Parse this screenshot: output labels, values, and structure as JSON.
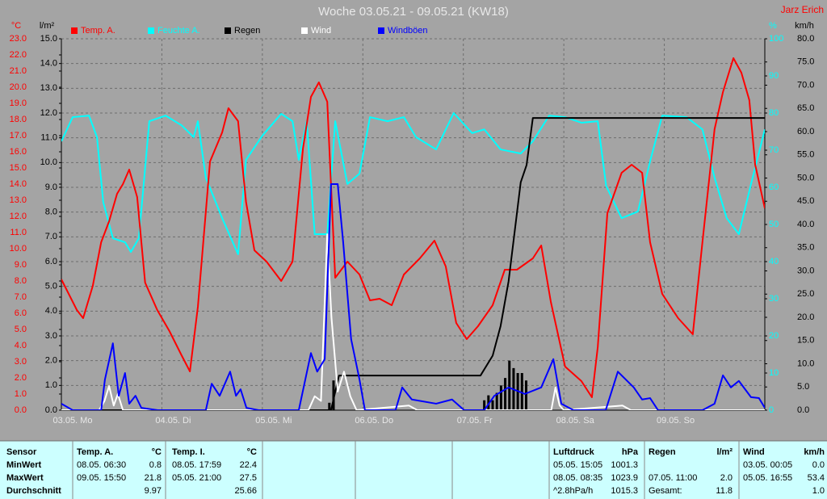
{
  "chart_data": {
    "type": "line",
    "title": "Woche 03.05.21 - 09.05.21 (KW18)",
    "author": "Jarz Erich",
    "xlim": [
      0,
      168
    ],
    "xticks": [
      {
        "value": 0,
        "label": "03.05. Mo"
      },
      {
        "value": 24,
        "label": "04.05. Di"
      },
      {
        "value": 48,
        "label": "05.05. Mi"
      },
      {
        "value": 72,
        "label": "06.05. Do"
      },
      {
        "value": 96,
        "label": "07.05. Fr"
      },
      {
        "value": 120,
        "label": "08.05. Sa"
      },
      {
        "value": 144,
        "label": "09.05. So"
      }
    ],
    "grid": true,
    "axes": [
      {
        "unit": "°C",
        "color": "#ff0000",
        "side": "left",
        "lim": [
          0,
          23
        ],
        "ticks": [
          {
            "value": 0,
            "label": "0.0"
          },
          {
            "value": 1,
            "label": "1.0"
          },
          {
            "value": 2,
            "label": "2.0"
          },
          {
            "value": 3,
            "label": "3.0"
          },
          {
            "value": 4,
            "label": "4.0"
          },
          {
            "value": 5,
            "label": "5.0"
          },
          {
            "value": 6,
            "label": "6.0"
          },
          {
            "value": 7,
            "label": "7.0"
          },
          {
            "value": 8,
            "label": "8.0"
          },
          {
            "value": 9,
            "label": "9.0"
          },
          {
            "value": 10,
            "label": "10.0"
          },
          {
            "value": 11,
            "label": "11.0"
          },
          {
            "value": 12,
            "label": "12.0"
          },
          {
            "value": 13,
            "label": "13.0"
          },
          {
            "value": 14,
            "label": "14.0"
          },
          {
            "value": 15,
            "label": "15.0"
          },
          {
            "value": 16,
            "label": "16.0"
          },
          {
            "value": 17,
            "label": "17.0"
          },
          {
            "value": 18,
            "label": "18.0"
          },
          {
            "value": 19,
            "label": "19.0"
          },
          {
            "value": 20,
            "label": "20.0"
          },
          {
            "value": 21,
            "label": "21.0"
          },
          {
            "value": 22,
            "label": "22.0"
          },
          {
            "value": 23,
            "label": "23.0"
          }
        ]
      },
      {
        "unit": "l/m²",
        "color": "#000000",
        "side": "left",
        "lim": [
          0,
          15
        ],
        "ticks": [
          {
            "value": 0,
            "label": "0.0"
          },
          {
            "value": 1,
            "label": "1.0"
          },
          {
            "value": 2,
            "label": "2.0"
          },
          {
            "value": 3,
            "label": "3.0"
          },
          {
            "value": 4,
            "label": "4.0"
          },
          {
            "value": 5,
            "label": "5.0"
          },
          {
            "value": 6,
            "label": "6.0"
          },
          {
            "value": 7,
            "label": "7.0"
          },
          {
            "value": 8,
            "label": "8.0"
          },
          {
            "value": 9,
            "label": "9.0"
          },
          {
            "value": 10,
            "label": "10.0"
          },
          {
            "value": 11,
            "label": "11.0"
          },
          {
            "value": 12,
            "label": "12.0"
          },
          {
            "value": 13,
            "label": "13.0"
          },
          {
            "value": 14,
            "label": "14.0"
          },
          {
            "value": 15,
            "label": "15.0"
          }
        ]
      },
      {
        "unit": "%",
        "color": "#00ffff",
        "side": "right",
        "lim": [
          0,
          100
        ],
        "ticks": [
          0,
          10,
          20,
          30,
          40,
          50,
          60,
          70,
          80,
          90,
          100
        ]
      },
      {
        "unit": "km/h",
        "color": "#000000",
        "side": "right",
        "lim": [
          0,
          80
        ],
        "ticks": [
          {
            "value": 0,
            "label": "0.0"
          },
          {
            "value": 5,
            "label": "5.0"
          },
          {
            "value": 10,
            "label": "10.0"
          },
          {
            "value": 15,
            "label": "15.0"
          },
          {
            "value": 20,
            "label": "20.0"
          },
          {
            "value": 25,
            "label": "25.0"
          },
          {
            "value": 30,
            "label": "30.0"
          },
          {
            "value": 35,
            "label": "35.0"
          },
          {
            "value": 40,
            "label": "40.0"
          },
          {
            "value": 45,
            "label": "45.0"
          },
          {
            "value": 50,
            "label": "50.0"
          },
          {
            "value": 55,
            "label": "55.0"
          },
          {
            "value": 60,
            "label": "60.0"
          },
          {
            "value": 65,
            "label": "65.0"
          },
          {
            "value": 70,
            "label": "70.0"
          },
          {
            "value": 75,
            "label": "75.0"
          },
          {
            "value": 80,
            "label": "80.0"
          }
        ]
      }
    ],
    "series": [
      {
        "name": "Temp. A.",
        "color": "#ff0000",
        "axis": 0,
        "x": [
          0,
          3.7,
          5.2,
          7.5,
          9.5,
          11.4,
          13.3,
          14.7,
          16.2,
          18.1,
          20,
          22.9,
          25.8,
          28.7,
          30.7,
          32.6,
          35.5,
          38.4,
          39.9,
          42.2,
          44.1,
          46.1,
          49,
          52.5,
          55.2,
          57.7,
          59.6,
          61.5,
          63.5,
          65.4,
          68.3,
          71.2,
          73.7,
          76,
          78.9,
          81.8,
          85.6,
          89.1,
          91.8,
          94.3,
          96.8,
          99.5,
          103,
          105.9,
          108.8,
          112.6,
          114.6,
          116.9,
          120.3,
          124.2,
          126.7,
          128.1,
          130.4,
          133.8,
          136.2,
          138.7,
          140.6,
          143.5,
          147.3,
          150.8,
          153.1,
          156,
          158,
          160.5,
          162.4,
          164.3,
          165.7,
          168
        ],
        "values": [
          8.1,
          6.2,
          5.7,
          7.7,
          10.4,
          11.7,
          13.4,
          14,
          14.9,
          13.2,
          7.9,
          6.2,
          4.9,
          3.4,
          2.4,
          6.4,
          15.4,
          17.2,
          18.7,
          17.9,
          12.9,
          9.9,
          9.2,
          8,
          9.2,
          16.2,
          19.4,
          20.3,
          19.1,
          8.2,
          9.2,
          8.4,
          6.8,
          6.9,
          6.5,
          8.4,
          9.4,
          10.5,
          8.9,
          5.4,
          4.4,
          5.2,
          6.5,
          8.7,
          8.7,
          9.4,
          10.2,
          6.7,
          2.7,
          1.8,
          0.8,
          3.9,
          12.2,
          14.7,
          15.2,
          14.7,
          10.4,
          7.2,
          5.7,
          4.7,
          10.4,
          17.4,
          19.7,
          21.8,
          20.9,
          19.2,
          15.2,
          12.5
        ]
      },
      {
        "name": "Feuchte A.",
        "color": "#00ffff",
        "axis": 2,
        "x": [
          0,
          2.7,
          6.6,
          8.5,
          10,
          12.3,
          15.2,
          16.6,
          18.5,
          21,
          24.9,
          28.7,
          31.6,
          32.6,
          34.5,
          38.4,
          42.2,
          44.1,
          48,
          52.5,
          55.2,
          56.7,
          58.6,
          60.5,
          63.5,
          65.4,
          68.3,
          71.2,
          73.7,
          77.9,
          81.8,
          84.7,
          89.5,
          93.7,
          98.1,
          101,
          104.9,
          109.7,
          112.6,
          116.5,
          120.3,
          124.2,
          128.1,
          130.1,
          133.8,
          137.7,
          140.6,
          143.5,
          149.3,
          153.1,
          156,
          158.9,
          161.8,
          164.6,
          168
        ],
        "values": [
          72.4,
          78.9,
          79.3,
          73.5,
          56,
          46.3,
          45.2,
          42.6,
          46.3,
          77.8,
          79.3,
          76.7,
          73.5,
          77.8,
          62.6,
          51.7,
          42,
          67.4,
          73.9,
          79.8,
          77.8,
          67.4,
          77.8,
          47.4,
          47.4,
          77.8,
          60.9,
          63.7,
          78.9,
          77.8,
          78.9,
          73.5,
          70.2,
          80,
          74.6,
          75.6,
          70.2,
          69.1,
          72.4,
          79.3,
          78.9,
          77.4,
          77.8,
          60.4,
          51.7,
          53.5,
          67,
          79.3,
          78.9,
          75.6,
          62.6,
          51.7,
          47.4,
          60.4,
          75.6
        ]
      },
      {
        "name": "Regen",
        "color": "#000000",
        "axis": 1,
        "x": [
          0,
          64.4,
          66.3,
          100.1,
          103,
          104.9,
          106.8,
          109.7,
          111.1,
          112.6,
          168
        ],
        "values": [
          0,
          0,
          1.4,
          1.4,
          2.2,
          3.4,
          5.2,
          9.2,
          9.9,
          11.8,
          11.8
        ],
        "bars": {
          "x": [
            64,
            65,
            101,
            102,
            103,
            104,
            105,
            106,
            107,
            108,
            109,
            110,
            111
          ],
          "values": [
            0.3,
            1.2,
            0.4,
            0.6,
            0.4,
            0.7,
            1.0,
            1.3,
            2.0,
            1.7,
            1.5,
            1.5,
            1.2
          ]
        }
      },
      {
        "name": "Wind",
        "color": "#ffffff",
        "axis": 3,
        "x": [
          0,
          9,
          10.3,
          11.4,
          12.5,
          13.5,
          14.7,
          59,
          60.5,
          62,
          63.5,
          64.5,
          66,
          67.5,
          69,
          70.5,
          83,
          85,
          117,
          118,
          119,
          120,
          134,
          136,
          168
        ],
        "values": [
          0,
          0,
          2,
          5.2,
          1,
          3.5,
          0,
          0,
          3,
          2,
          37.9,
          20,
          4,
          8.3,
          3,
          0,
          1,
          0,
          0,
          4.9,
          1,
          0,
          1,
          0,
          0
        ]
      },
      {
        "name": "Windböen",
        "color": "#0000ff",
        "axis": 3,
        "x": [
          0,
          2.7,
          9.5,
          10.4,
          12.3,
          13.7,
          15.2,
          16.2,
          17.7,
          19.1,
          23,
          34.5,
          35.9,
          37.8,
          40.3,
          41.7,
          42.8,
          44.2,
          47.1,
          56.7,
          59.6,
          61.1,
          62.9,
          64.4,
          66,
          67.3,
          69.2,
          71.2,
          72.5,
          79.8,
          81.4,
          83.7,
          89.5,
          93.3,
          96.2,
          101,
          103.4,
          106.8,
          110.7,
          114.6,
          117.5,
          119.4,
          122.3,
          130,
          132.9,
          134.8,
          136.7,
          138.7,
          140.6,
          142.5,
          153.1,
          156,
          158,
          159.9,
          161.8,
          164.7,
          166.6,
          168
        ],
        "values": [
          1.4,
          0,
          0,
          6.6,
          14.4,
          3.1,
          8,
          1.4,
          3.1,
          0.5,
          0,
          0,
          5.7,
          3.1,
          8.3,
          3.1,
          4.5,
          0.5,
          0,
          0,
          12.3,
          8.3,
          11,
          48.7,
          48.7,
          36.2,
          15.3,
          6.6,
          0,
          0,
          4.9,
          2.3,
          1.4,
          2.3,
          0,
          0,
          3.1,
          4.9,
          3.5,
          4.9,
          11,
          1.4,
          0,
          0,
          8.3,
          6.6,
          4.9,
          2.3,
          2.6,
          0,
          0,
          1.4,
          7.5,
          4.9,
          6.3,
          2.8,
          2.6,
          0.5
        ]
      }
    ]
  },
  "table": {
    "left": {
      "rows": [
        [
          "Sensor",
          "Temp. A.",
          "°C",
          "Temp. I.",
          "°C"
        ],
        [
          "MinWert",
          "08.05.  06:30",
          "0.8",
          "08.05.  17:59",
          "22.4"
        ],
        [
          "MaxWert",
          "09.05.  15:50",
          "21.8",
          "05.05.  21:00",
          "27.5"
        ],
        [
          "Durchschnitt",
          null,
          "9.97",
          null,
          "25.66"
        ]
      ]
    },
    "right": {
      "rows": [
        [
          "Luftdruck",
          "hPa",
          "Regen",
          "l/m²",
          "Wind",
          "km/h"
        ],
        [
          "05.05.  15:05",
          "1001.3",
          null,
          null,
          "03.05.  00:05",
          "0.0"
        ],
        [
          "08.05.  08:35",
          "1023.9",
          "07.05.  11:00",
          "2.0",
          "05.05.  16:55",
          "53.4"
        ],
        [
          "^2.8hPa/h",
          "1015.3",
          "Gesamt:",
          "11.8",
          null,
          "1.0"
        ]
      ]
    }
  }
}
